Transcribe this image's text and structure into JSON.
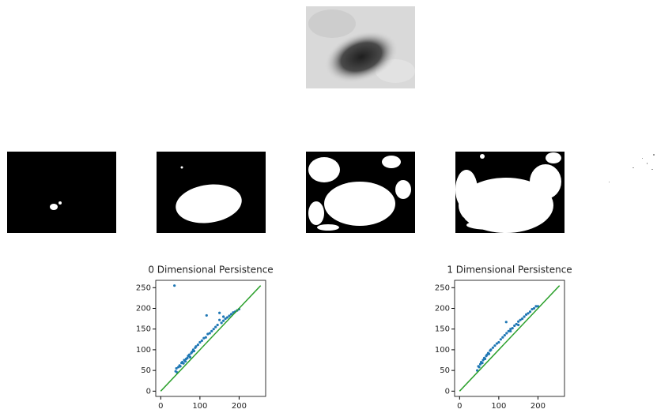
{
  "chart_data": [
    {
      "type": "scatter",
      "title": "0 Dimensional Persistence",
      "color": "#1f77b4",
      "x": [
        35,
        38,
        40,
        42,
        45,
        48,
        50,
        53,
        55,
        58,
        60,
        63,
        65,
        68,
        70,
        73,
        75,
        78,
        80,
        83,
        85,
        88,
        90,
        95,
        100,
        105,
        110,
        115,
        117,
        120,
        125,
        130,
        135,
        140,
        145,
        150,
        155,
        160,
        165,
        170,
        175,
        180,
        185,
        190,
        195,
        200,
        160,
        150
      ],
      "values": [
        255,
        48,
        55,
        45,
        58,
        62,
        60,
        68,
        70,
        67,
        75,
        72,
        78,
        80,
        85,
        88,
        82,
        92,
        95,
        100,
        97,
        105,
        108,
        112,
        118,
        122,
        128,
        130,
        183,
        138,
        140,
        145,
        150,
        155,
        160,
        189,
        165,
        170,
        175,
        178,
        182,
        186,
        190,
        192,
        195,
        198,
        180,
        172
      ],
      "line": {
        "color": "#2ca02c",
        "x": [
          0,
          255
        ],
        "values": [
          0,
          255
        ]
      },
      "xlim": [
        -12.75,
        267.75
      ],
      "ylim": [
        -12.75,
        267.75
      ],
      "xticks": [
        0,
        100,
        200
      ],
      "yticks": [
        0,
        50,
        100,
        150,
        200,
        250
      ]
    },
    {
      "type": "scatter",
      "title": "1 Dimensional Persistence",
      "color": "#1f77b4",
      "x": [
        45,
        48,
        50,
        53,
        55,
        58,
        60,
        63,
        65,
        68,
        70,
        73,
        75,
        78,
        80,
        85,
        90,
        95,
        100,
        105,
        110,
        115,
        119,
        120,
        125,
        130,
        135,
        140,
        145,
        150,
        155,
        160,
        165,
        170,
        175,
        180,
        185,
        190,
        195,
        200,
        150,
        130
      ],
      "values": [
        50,
        60,
        58,
        65,
        70,
        68,
        75,
        80,
        78,
        85,
        88,
        92,
        90,
        98,
        100,
        105,
        110,
        115,
        118,
        125,
        130,
        135,
        167,
        140,
        145,
        150,
        152,
        158,
        162,
        168,
        172,
        175,
        180,
        185,
        188,
        192,
        198,
        200,
        205,
        205,
        160,
        145
      ],
      "line": {
        "color": "#2ca02c",
        "x": [
          0,
          255
        ],
        "values": [
          0,
          255
        ]
      },
      "xlim": [
        -12.75,
        267.75
      ],
      "ylim": [
        -12.75,
        267.75
      ],
      "xticks": [
        0,
        100,
        200
      ],
      "yticks": [
        0,
        50,
        100,
        150,
        200,
        250
      ]
    }
  ]
}
